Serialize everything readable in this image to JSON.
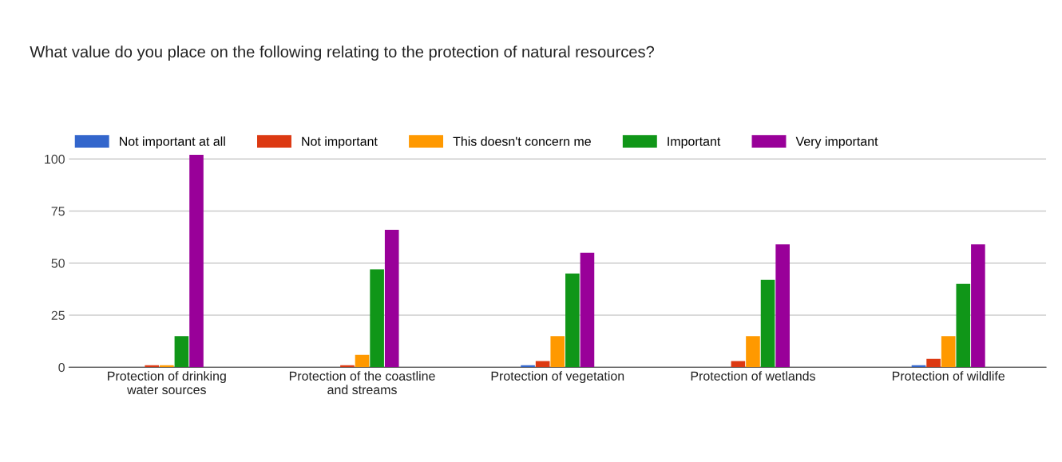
{
  "chart_data": {
    "type": "bar",
    "title": "What value do you place on the following relating to the protection of natural resources?",
    "categories": [
      "Protection of drinking\nwater sources",
      "Protection of the coastline\nand streams",
      "Protection of vegetation",
      "Protection of wetlands",
      "Protection of wildlife"
    ],
    "series": [
      {
        "name": "Not important at all",
        "color": "#3366cc",
        "values": [
          0,
          0,
          1,
          0,
          1
        ]
      },
      {
        "name": "Not important",
        "color": "#dc3912",
        "values": [
          1,
          1,
          3,
          3,
          4
        ]
      },
      {
        "name": "This doesn't concern me",
        "color": "#ff9900",
        "values": [
          1,
          6,
          15,
          15,
          15
        ]
      },
      {
        "name": "Important",
        "color": "#109618",
        "values": [
          15,
          47,
          45,
          42,
          40
        ]
      },
      {
        "name": "Very important",
        "color": "#990099",
        "values": [
          102,
          66,
          55,
          59,
          59
        ]
      }
    ],
    "ylim": [
      0,
      102
    ],
    "yticks": [
      0,
      25,
      50,
      75,
      100
    ],
    "grid": "y",
    "legend": "top left"
  }
}
